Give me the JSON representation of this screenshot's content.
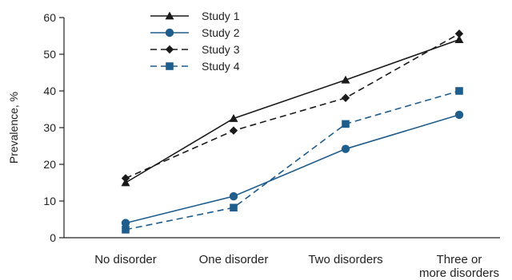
{
  "chart_data": {
    "type": "line",
    "title": "",
    "xlabel": "",
    "ylabel": "Prevalence, %",
    "ylim": [
      0,
      60
    ],
    "yticks": [
      0,
      10,
      20,
      30,
      40,
      50,
      60
    ],
    "categories": [
      "No disorder",
      "One disorder",
      "Two disorders",
      "Three or more disorders"
    ],
    "category_label_lines": [
      [
        "No disorder"
      ],
      [
        "One disorder"
      ],
      [
        "Two disorders"
      ],
      [
        "Three or",
        "more disorders"
      ]
    ],
    "legend_position": "top-center",
    "grid": false,
    "series": [
      {
        "name": "Study 1",
        "values": [
          15,
          32.5,
          43,
          54
        ],
        "color": "#1a1a1a",
        "dash": "solid",
        "marker": "triangle"
      },
      {
        "name": "Study 2",
        "values": [
          4,
          11.3,
          24.2,
          33.5
        ],
        "color": "#1f5d8c",
        "dash": "solid",
        "marker": "circle"
      },
      {
        "name": "Study 3",
        "values": [
          16.2,
          29.2,
          38.1,
          55.6
        ],
        "color": "#1a1a1a",
        "dash": "dashed",
        "marker": "diamond"
      },
      {
        "name": "Study 4",
        "values": [
          2.2,
          8.2,
          31,
          40
        ],
        "color": "#1f5d8c",
        "dash": "dashed",
        "marker": "square"
      }
    ]
  }
}
